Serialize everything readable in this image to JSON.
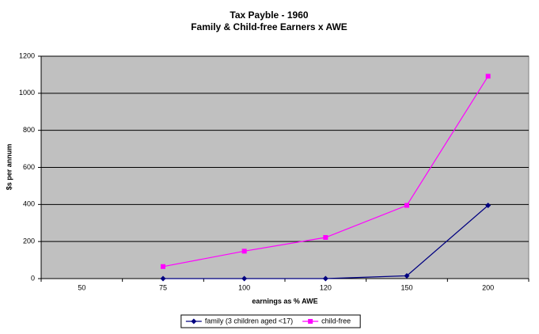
{
  "chart_data": {
    "type": "line",
    "title": "Tax Payble - 1960",
    "subtitle": "Family & Child-free Earners x AWE",
    "x_label": "earnings as % AWE",
    "y_label": "$s per annum",
    "categories": [
      "50",
      "75",
      "100",
      "120",
      "150",
      "200"
    ],
    "series": [
      {
        "name": "family (3 children aged <17)",
        "color": "#000080",
        "marker": "diamond",
        "values": [
          null,
          0,
          0,
          0,
          15,
          395
        ]
      },
      {
        "name": "child-free",
        "color": "#ff00ff",
        "marker": "square",
        "values": [
          null,
          65,
          148,
          222,
          395,
          1092
        ]
      }
    ],
    "ylim": [
      0,
      1200
    ],
    "yticks": [
      0,
      200,
      400,
      600,
      800,
      1000,
      1200
    ],
    "grid": true,
    "plot_background": "#c0c0c0",
    "legend": "bottom"
  }
}
